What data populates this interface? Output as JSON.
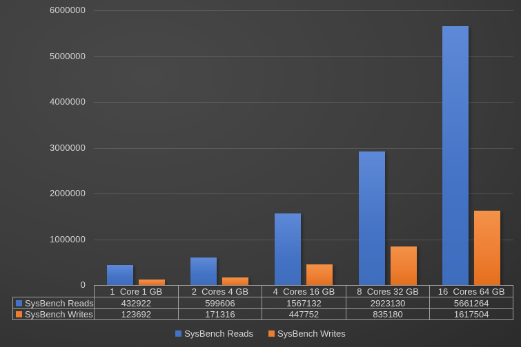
{
  "chart_data": {
    "type": "bar",
    "title": "",
    "xlabel": "",
    "ylabel": "",
    "categories": [
      "1  Core 1 GB",
      "2  Cores 4 GB",
      "4  Cores 16 GB",
      "8  Cores 32 GB",
      "16  Cores 64 GB"
    ],
    "series": [
      {
        "name": "SysBench Reads",
        "color": "#4472C4",
        "color_light": "#5E89D8",
        "color_dark": "#3E6DBE",
        "values": [
          432922,
          599606,
          1567132,
          2923130,
          5661264
        ]
      },
      {
        "name": "SysBench Writes",
        "color": "#ED7D31",
        "color_light": "#F39249",
        "color_dark": "#E36F1D",
        "values": [
          123692,
          171316,
          447752,
          835180,
          1617504
        ]
      }
    ],
    "ylim": [
      0,
      6000000
    ],
    "ytick_step": 1000000,
    "yticks": [
      "0",
      "1000000",
      "2000000",
      "3000000",
      "4000000",
      "5000000",
      "6000000"
    ],
    "grid": true,
    "legend_position": "bottom",
    "data_table_shown": true
  },
  "legend": {
    "items": [
      {
        "label": "SysBench Reads",
        "color": "#4472C4"
      },
      {
        "label": "SysBench Writes",
        "color": "#ED7D31"
      }
    ]
  },
  "colors": {
    "background_center": "#484848",
    "background_mid": "#3c3c3c",
    "background_edge": "#232323",
    "gridline": "#555555",
    "axis_text": "#d6d6d6",
    "table_border": "#a0a0a0",
    "table_text": "#d6d6d6",
    "reads_blue": "#4472C4",
    "writes_orange": "#ED7D31"
  }
}
